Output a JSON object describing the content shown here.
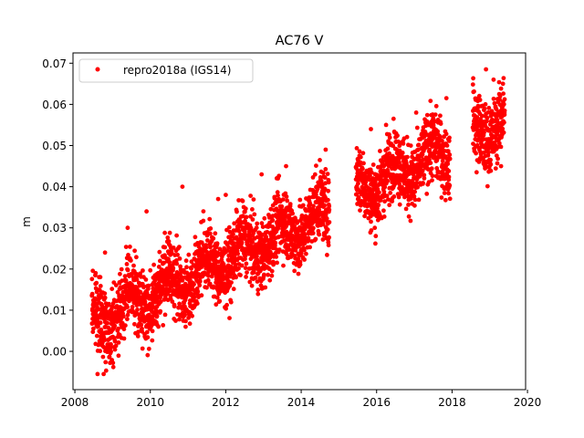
{
  "chart_data": {
    "type": "scatter",
    "title": "AC76 V",
    "xlabel": "",
    "ylabel": "m",
    "xlim": [
      2007.95,
      2019.95
    ],
    "ylim": [
      -0.0093,
      0.0725
    ],
    "xticks": [
      2008,
      2010,
      2012,
      2014,
      2016,
      2018,
      2020
    ],
    "xtick_labels": [
      "2008",
      "2010",
      "2012",
      "2014",
      "2016",
      "2018",
      "2020"
    ],
    "yticks": [
      0.0,
      0.01,
      0.02,
      0.03,
      0.04,
      0.05,
      0.06,
      0.07
    ],
    "ytick_labels": [
      "0.00",
      "0.01",
      "0.02",
      "0.03",
      "0.04",
      "0.05",
      "0.06",
      "0.07"
    ],
    "grid": false,
    "legend": {
      "placement": "top-left",
      "entries": [
        {
          "label": "repro2018a (IGS14)",
          "color": "#ff0000",
          "marker": "circle"
        }
      ]
    },
    "series": [
      {
        "name": "repro2018a (IGS14)",
        "color": "#ff0000",
        "segments": [
          {
            "x_start": 2008.45,
            "x_end": 2014.75,
            "trend_start": 0.007,
            "trend_end": 0.034,
            "scatter": 0.01
          },
          {
            "x_start": 2015.45,
            "x_end": 2017.95,
            "trend_start": 0.039,
            "trend_end": 0.049,
            "scatter": 0.01
          },
          {
            "x_start": 2018.55,
            "x_end": 2019.4,
            "trend_start": 0.054,
            "trend_end": 0.055,
            "scatter": 0.01
          }
        ],
        "points": [
          [
            2008.6,
            -0.0055
          ],
          [
            2008.55,
            0.019
          ],
          [
            2008.8,
            0.024
          ],
          [
            2009.4,
            0.03
          ],
          [
            2009.9,
            0.034
          ],
          [
            2010.85,
            0.04
          ],
          [
            2011.8,
            0.037
          ],
          [
            2012.0,
            0.038
          ],
          [
            2012.95,
            0.043
          ],
          [
            2013.6,
            0.045
          ],
          [
            2014.65,
            0.049
          ],
          [
            2015.85,
            0.054
          ],
          [
            2016.25,
            0.055
          ],
          [
            2017.05,
            0.058
          ],
          [
            2017.85,
            0.0615
          ],
          [
            2018.9,
            0.0685
          ],
          [
            2019.1,
            0.066
          ],
          [
            2019.35,
            0.065
          ],
          [
            2018.65,
            0.0435
          ],
          [
            2019.3,
            0.045
          ],
          [
            2015.95,
            0.03
          ]
        ]
      }
    ]
  }
}
